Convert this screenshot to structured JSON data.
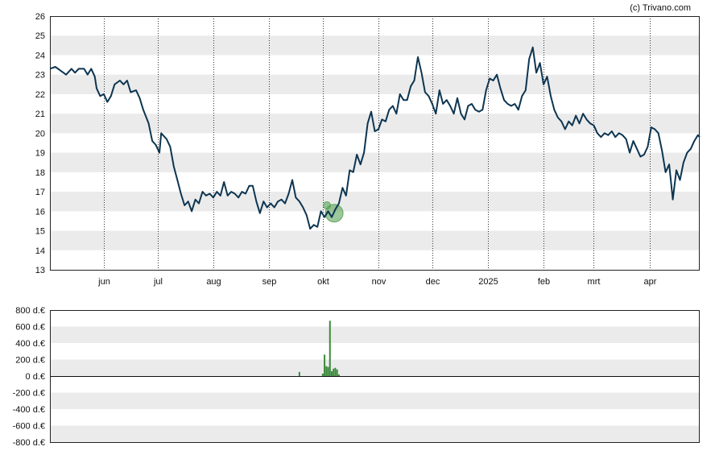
{
  "credit": "(c) Trivano.com",
  "chart_data": [
    {
      "type": "line",
      "title": "",
      "xlabel": "",
      "ylabel": "",
      "ylim": [
        13,
        26
      ],
      "yticks": [
        13,
        14,
        15,
        16,
        17,
        18,
        19,
        20,
        21,
        22,
        23,
        24,
        25,
        26
      ],
      "xticks": [
        {
          "label": "jun",
          "date": "2024-06-01"
        },
        {
          "label": "jul",
          "date": "2024-07-01"
        },
        {
          "label": "aug",
          "date": "2024-08-01"
        },
        {
          "label": "sep",
          "date": "2024-09-01"
        },
        {
          "label": "okt",
          "date": "2024-10-01"
        },
        {
          "label": "nov",
          "date": "2024-11-01"
        },
        {
          "label": "dec",
          "date": "2024-12-01"
        },
        {
          "label": "2025",
          "date": "2025-01-01"
        },
        {
          "label": "feb",
          "date": "2025-02-01"
        },
        {
          "label": "mrt",
          "date": "2025-03-01"
        },
        {
          "label": "apr",
          "date": "2025-04-01"
        }
      ],
      "xlim": [
        "2024-05-02",
        "2025-04-29"
      ],
      "grid": "horizontal bands, dotted vertical month lines",
      "line_color": "#0d3551",
      "series": [
        {
          "values": [
            [
              "2024-05-02",
              23.3
            ],
            [
              "2024-05-05",
              23.4
            ],
            [
              "2024-05-08",
              23.2
            ],
            [
              "2024-05-11",
              23.0
            ],
            [
              "2024-05-14",
              23.3
            ],
            [
              "2024-05-16",
              23.1
            ],
            [
              "2024-05-18",
              23.3
            ],
            [
              "2024-05-21",
              23.3
            ],
            [
              "2024-05-23",
              23.0
            ],
            [
              "2024-05-25",
              23.3
            ],
            [
              "2024-05-27",
              22.9
            ],
            [
              "2024-05-28",
              22.3
            ],
            [
              "2024-05-30",
              21.9
            ],
            [
              "2024-06-01",
              22.0
            ],
            [
              "2024-06-03",
              21.6
            ],
            [
              "2024-06-05",
              21.9
            ],
            [
              "2024-06-07",
              22.5
            ],
            [
              "2024-06-10",
              22.7
            ],
            [
              "2024-06-12",
              22.5
            ],
            [
              "2024-06-14",
              22.7
            ],
            [
              "2024-06-16",
              22.1
            ],
            [
              "2024-06-19",
              22.2
            ],
            [
              "2024-06-21",
              21.8
            ],
            [
              "2024-06-23",
              21.2
            ],
            [
              "2024-06-26",
              20.5
            ],
            [
              "2024-06-28",
              19.6
            ],
            [
              "2024-06-30",
              19.4
            ],
            [
              "2024-07-02",
              19.0
            ],
            [
              "2024-07-03",
              20.0
            ],
            [
              "2024-07-06",
              19.7
            ],
            [
              "2024-07-08",
              19.3
            ],
            [
              "2024-07-10",
              18.3
            ],
            [
              "2024-07-12",
              17.6
            ],
            [
              "2024-07-14",
              16.9
            ],
            [
              "2024-07-16",
              16.3
            ],
            [
              "2024-07-18",
              16.5
            ],
            [
              "2024-07-20",
              16.0
            ],
            [
              "2024-07-22",
              16.6
            ],
            [
              "2024-07-24",
              16.4
            ],
            [
              "2024-07-26",
              17.0
            ],
            [
              "2024-07-28",
              16.8
            ],
            [
              "2024-07-30",
              16.9
            ],
            [
              "2024-08-01",
              16.7
            ],
            [
              "2024-08-03",
              17.0
            ],
            [
              "2024-08-05",
              16.8
            ],
            [
              "2024-08-07",
              17.5
            ],
            [
              "2024-08-09",
              16.8
            ],
            [
              "2024-08-11",
              17.0
            ],
            [
              "2024-08-13",
              16.9
            ],
            [
              "2024-08-15",
              16.7
            ],
            [
              "2024-08-17",
              17.0
            ],
            [
              "2024-08-19",
              16.9
            ],
            [
              "2024-08-21",
              17.3
            ],
            [
              "2024-08-23",
              17.3
            ],
            [
              "2024-08-25",
              16.5
            ],
            [
              "2024-08-27",
              15.9
            ],
            [
              "2024-08-29",
              16.5
            ],
            [
              "2024-08-31",
              16.2
            ],
            [
              "2024-09-02",
              16.4
            ],
            [
              "2024-09-04",
              16.2
            ],
            [
              "2024-09-06",
              16.5
            ],
            [
              "2024-09-08",
              16.6
            ],
            [
              "2024-09-10",
              16.4
            ],
            [
              "2024-09-12",
              16.9
            ],
            [
              "2024-09-14",
              17.6
            ],
            [
              "2024-09-16",
              16.7
            ],
            [
              "2024-09-18",
              16.5
            ],
            [
              "2024-09-20",
              16.2
            ],
            [
              "2024-09-22",
              15.8
            ],
            [
              "2024-09-24",
              15.1
            ],
            [
              "2024-09-26",
              15.3
            ],
            [
              "2024-09-28",
              15.2
            ],
            [
              "2024-09-30",
              16.0
            ],
            [
              "2024-10-02",
              15.7
            ],
            [
              "2024-10-04",
              16.0
            ],
            [
              "2024-10-06",
              15.7
            ],
            [
              "2024-10-08",
              16.1
            ],
            [
              "2024-10-10",
              16.4
            ],
            [
              "2024-10-12",
              17.2
            ],
            [
              "2024-10-14",
              16.8
            ],
            [
              "2024-10-16",
              18.1
            ],
            [
              "2024-10-18",
              18.0
            ],
            [
              "2024-10-20",
              18.9
            ],
            [
              "2024-10-22",
              18.4
            ],
            [
              "2024-10-24",
              19.0
            ],
            [
              "2024-10-26",
              20.5
            ],
            [
              "2024-10-28",
              21.1
            ],
            [
              "2024-10-30",
              20.1
            ],
            [
              "2024-11-01",
              20.2
            ],
            [
              "2024-11-03",
              20.7
            ],
            [
              "2024-11-05",
              20.6
            ],
            [
              "2024-11-07",
              21.2
            ],
            [
              "2024-11-09",
              21.4
            ],
            [
              "2024-11-11",
              21.0
            ],
            [
              "2024-11-13",
              22.0
            ],
            [
              "2024-11-15",
              21.7
            ],
            [
              "2024-11-17",
              21.7
            ],
            [
              "2024-11-19",
              22.4
            ],
            [
              "2024-11-21",
              22.7
            ],
            [
              "2024-11-23",
              23.9
            ],
            [
              "2024-11-25",
              23.1
            ],
            [
              "2024-11-27",
              22.1
            ],
            [
              "2024-11-29",
              21.9
            ],
            [
              "2024-12-01",
              21.5
            ],
            [
              "2024-12-03",
              21.0
            ],
            [
              "2024-12-05",
              22.2
            ],
            [
              "2024-12-07",
              21.5
            ],
            [
              "2024-12-09",
              21.7
            ],
            [
              "2024-12-11",
              21.4
            ],
            [
              "2024-12-13",
              21.0
            ],
            [
              "2024-12-15",
              21.8
            ],
            [
              "2024-12-17",
              21.0
            ],
            [
              "2024-12-19",
              20.7
            ],
            [
              "2024-12-21",
              21.4
            ],
            [
              "2024-12-23",
              21.5
            ],
            [
              "2024-12-25",
              21.2
            ],
            [
              "2024-12-27",
              21.1
            ],
            [
              "2024-12-29",
              21.2
            ],
            [
              "2024-12-31",
              22.2
            ],
            [
              "2025-01-02",
              22.8
            ],
            [
              "2025-01-04",
              22.7
            ],
            [
              "2025-01-06",
              23.0
            ],
            [
              "2025-01-08",
              22.3
            ],
            [
              "2025-01-10",
              21.7
            ],
            [
              "2025-01-12",
              21.5
            ],
            [
              "2025-01-14",
              21.4
            ],
            [
              "2025-01-16",
              21.5
            ],
            [
              "2025-01-18",
              21.2
            ],
            [
              "2025-01-20",
              21.9
            ],
            [
              "2025-01-22",
              22.2
            ],
            [
              "2025-01-24",
              23.8
            ],
            [
              "2025-01-26",
              24.4
            ],
            [
              "2025-01-28",
              23.1
            ],
            [
              "2025-01-30",
              23.6
            ],
            [
              "2025-02-01",
              22.5
            ],
            [
              "2025-02-03",
              22.9
            ],
            [
              "2025-02-05",
              21.9
            ],
            [
              "2025-02-07",
              21.2
            ],
            [
              "2025-02-09",
              20.8
            ],
            [
              "2025-02-11",
              20.6
            ],
            [
              "2025-02-13",
              20.2
            ],
            [
              "2025-02-15",
              20.6
            ],
            [
              "2025-02-17",
              20.4
            ],
            [
              "2025-02-19",
              20.9
            ],
            [
              "2025-02-21",
              20.5
            ],
            [
              "2025-02-23",
              21.0
            ],
            [
              "2025-02-25",
              20.7
            ],
            [
              "2025-02-27",
              20.5
            ],
            [
              "2025-03-01",
              20.4
            ],
            [
              "2025-03-03",
              20.0
            ],
            [
              "2025-03-05",
              19.8
            ],
            [
              "2025-03-07",
              20.0
            ],
            [
              "2025-03-09",
              19.9
            ],
            [
              "2025-03-11",
              20.1
            ],
            [
              "2025-03-13",
              19.8
            ],
            [
              "2025-03-15",
              20.0
            ],
            [
              "2025-03-17",
              19.9
            ],
            [
              "2025-03-19",
              19.7
            ],
            [
              "2025-03-21",
              19.0
            ],
            [
              "2025-03-23",
              19.6
            ],
            [
              "2025-03-25",
              19.2
            ],
            [
              "2025-03-27",
              18.8
            ],
            [
              "2025-03-29",
              18.9
            ],
            [
              "2025-03-31",
              19.3
            ],
            [
              "2025-04-02",
              20.3
            ],
            [
              "2025-04-04",
              20.2
            ],
            [
              "2025-04-06",
              20.0
            ],
            [
              "2025-04-08",
              19.1
            ],
            [
              "2025-04-10",
              18.0
            ],
            [
              "2025-04-12",
              18.4
            ],
            [
              "2025-04-14",
              16.6
            ],
            [
              "2025-04-16",
              18.1
            ],
            [
              "2025-04-18",
              17.6
            ],
            [
              "2025-04-20",
              18.5
            ],
            [
              "2025-04-22",
              19.0
            ],
            [
              "2025-04-24",
              19.2
            ],
            [
              "2025-04-26",
              19.6
            ],
            [
              "2025-04-28",
              19.9
            ],
            [
              "2025-04-29",
              19.8
            ]
          ]
        }
      ],
      "markers": [
        {
          "date": "2024-10-02",
          "value": 15.9,
          "size": "large",
          "color": "#4a9a4a"
        },
        {
          "date": "2024-10-02",
          "value": 16.3,
          "size": "small",
          "color": "#4a9a4a"
        }
      ]
    },
    {
      "type": "bar",
      "title": "",
      "xlabel": "",
      "ylabel": "",
      "ylim": [
        -800,
        800
      ],
      "yticks": [
        "800 d.€",
        "600 d.€",
        "400 d.€",
        "200 d.€",
        "0 d.€",
        "-200 d.€",
        "-400 d.€",
        "-600 d.€",
        "-800 d.€"
      ],
      "ytick_values": [
        800,
        600,
        400,
        200,
        0,
        -200,
        -400,
        -600,
        -800
      ],
      "bar_color": "#3b8a3b",
      "values": [
        [
          "2024-09-18",
          50
        ],
        [
          "2024-10-01",
          30
        ],
        [
          "2024-10-02",
          260
        ],
        [
          "2024-10-03",
          120
        ],
        [
          "2024-10-04",
          110
        ],
        [
          "2024-10-05",
          670
        ],
        [
          "2024-10-06",
          60
        ],
        [
          "2024-10-07",
          90
        ],
        [
          "2024-10-08",
          100
        ],
        [
          "2024-10-09",
          80
        ],
        [
          "2024-10-10",
          20
        ]
      ]
    }
  ]
}
